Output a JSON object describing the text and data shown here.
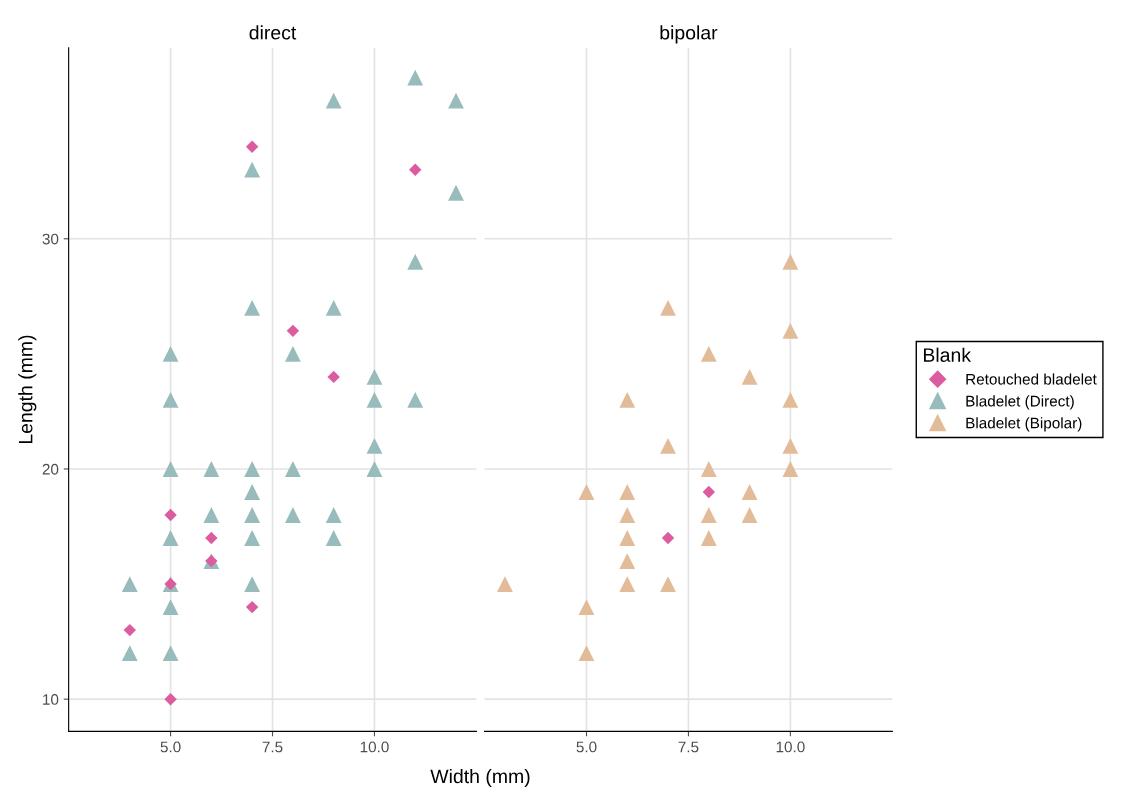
{
  "chart_data": [
    {
      "type": "scatter",
      "title": "direct",
      "legend": "right",
      "xlabel": "Width (mm)",
      "ylabel": "Length (mm)",
      "xlim": [
        2.5,
        12.5
      ],
      "ylim": [
        8.6,
        38.3
      ],
      "xticks": [
        {
          "value": 5,
          "label": "5.0"
        },
        {
          "value": 7.5,
          "label": "7.5"
        },
        {
          "value": 10,
          "label": "10.0"
        }
      ],
      "yticks": [
        10,
        20,
        30
      ],
      "grid": true,
      "series": [
        {
          "name": "Bladelet (Direct)",
          "color": "#98bcbb",
          "marker": "triangle",
          "x": [
            4,
            4,
            5,
            5,
            5,
            5,
            5,
            5,
            5,
            6,
            6,
            6,
            7,
            7,
            7,
            7,
            7,
            7,
            7,
            8,
            8,
            8,
            9,
            9,
            9,
            9,
            10,
            10,
            10,
            10,
            11,
            11,
            11,
            12,
            12
          ],
          "values": [
            15,
            12,
            25,
            23,
            20,
            17,
            15,
            14,
            12,
            20,
            18,
            16,
            33,
            27,
            20,
            19,
            18,
            17,
            15,
            25,
            20,
            18,
            36,
            27,
            18,
            17,
            24,
            23,
            21,
            20,
            37,
            29,
            23,
            36,
            32
          ]
        },
        {
          "name": "Retouched bladelet",
          "color": "#dc5d9f",
          "marker": "diamond",
          "x": [
            4,
            5,
            5,
            5,
            6,
            6,
            7,
            7,
            8,
            9,
            11
          ],
          "values": [
            13,
            18,
            15,
            10,
            17,
            16,
            34,
            14,
            26,
            24,
            33
          ]
        }
      ]
    },
    {
      "type": "scatter",
      "title": "bipolar",
      "legend": "right",
      "legend_title": "Blank",
      "tick_labels": "x",
      "xlim": [
        2.5,
        12.5
      ],
      "ylim": [
        8.6,
        38.3
      ],
      "xticks": [
        {
          "value": 5,
          "label": "5.0"
        },
        {
          "value": 7.5,
          "label": "7.5"
        },
        {
          "value": 10,
          "label": "10.0"
        }
      ],
      "yticks": [
        10,
        20,
        30
      ],
      "grid": true,
      "series": [
        {
          "name": "Bladelet (Bipolar)",
          "color": "#e2bc98",
          "marker": "triangle",
          "x": [
            3,
            5,
            5,
            5,
            6,
            6,
            6,
            6,
            6,
            6,
            7,
            7,
            7,
            8,
            8,
            8,
            8,
            9,
            9,
            9,
            10,
            10,
            10,
            10,
            10
          ],
          "values": [
            15,
            19,
            14,
            12,
            23,
            19,
            18,
            17,
            16,
            15,
            27,
            21,
            15,
            25,
            20,
            18,
            17,
            24,
            19,
            18,
            29,
            26,
            23,
            21,
            20
          ]
        },
        {
          "name": "Retouched bladelet",
          "color": "#dc5d9f",
          "marker": "diamond",
          "x": [
            7,
            8
          ],
          "values": [
            17,
            19
          ]
        }
      ]
    }
  ]
}
